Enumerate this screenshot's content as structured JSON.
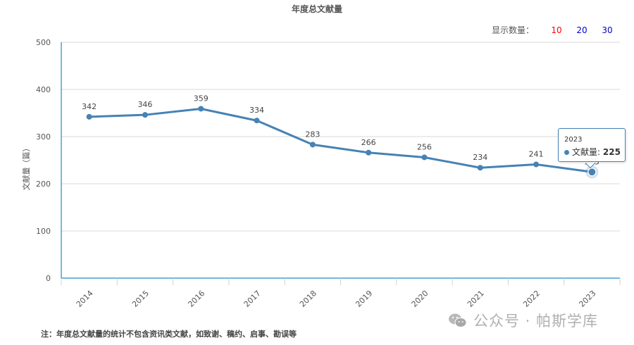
{
  "header": {
    "title": "年度总文献量"
  },
  "count_selector": {
    "label": "显示数量：",
    "options": [
      {
        "label": "10",
        "active": true
      },
      {
        "label": "20",
        "active": false
      },
      {
        "label": "30",
        "active": false
      }
    ]
  },
  "tooltip": {
    "year": "2023",
    "series_label": "文献量",
    "value": "225"
  },
  "footer": {
    "note": "注：年度总文献量的统计不包含资讯类文献，如致谢、稿约、启事、勘误等"
  },
  "watermark": {
    "text": "公众号 · 帕斯学库"
  },
  "colors": {
    "line": "#4682b4",
    "axis": "#1f8bc4",
    "grid": "#d9d9d9",
    "active_option": "#ff0000",
    "option": "#0000cc"
  },
  "chart_data": {
    "type": "line",
    "title": "年度总文献量",
    "xlabel": "",
    "ylabel": "文献量（篇）",
    "categories": [
      "2014",
      "2015",
      "2016",
      "2017",
      "2018",
      "2019",
      "2020",
      "2021",
      "2022",
      "2023"
    ],
    "series": [
      {
        "name": "文献量",
        "values": [
          342,
          346,
          359,
          334,
          283,
          266,
          256,
          234,
          241,
          225
        ]
      }
    ],
    "yticks": [
      0,
      100,
      200,
      300,
      400,
      500
    ],
    "ylim": [
      0,
      500
    ],
    "grid": true,
    "data_labels": true,
    "x_label_rotation": -45,
    "highlighted_point": {
      "category": "2023",
      "value": 225
    }
  }
}
